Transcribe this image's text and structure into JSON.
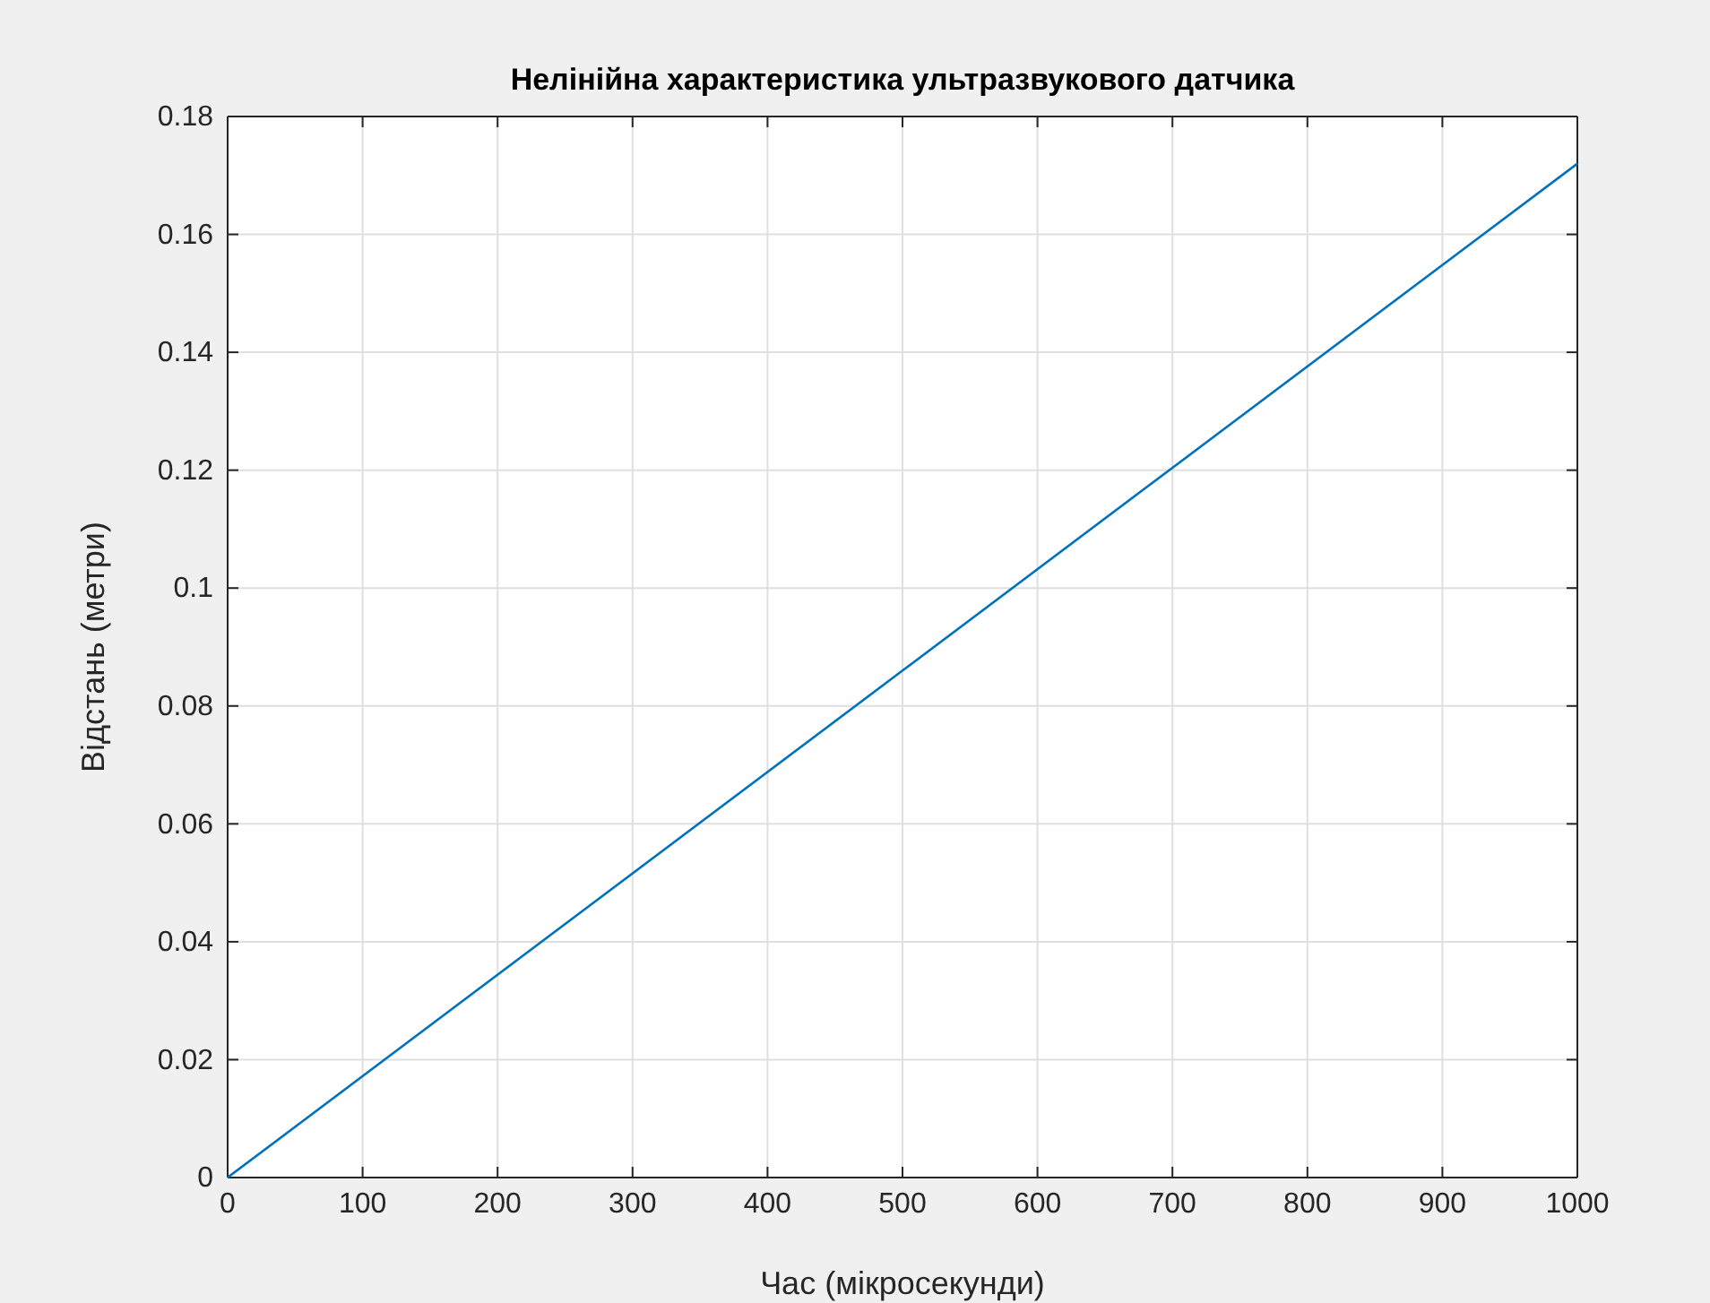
{
  "chart_data": {
    "type": "line",
    "title": "Нелінійна характеристика ультразвукового датчика",
    "xlabel": "Час (мікросекунди)",
    "ylabel": "Відстань (метри)",
    "x": [
      0,
      500,
      1000
    ],
    "series": [
      {
        "color": "#0072bd",
        "values": [
          0,
          0.086,
          0.172
        ]
      }
    ],
    "xlim": [
      0,
      1000
    ],
    "xticks": [
      0,
      100,
      200,
      300,
      400,
      500,
      600,
      700,
      800,
      900,
      1000
    ],
    "ylim": [
      0,
      0.18
    ],
    "yticks": [
      0,
      0.02,
      0.04,
      0.06,
      0.08,
      {
        "value": 0.1,
        "label": "0.1"
      },
      0.12,
      0.14,
      0.16,
      0.18
    ],
    "grid": true,
    "marker": "none",
    "line_style": "solid"
  }
}
